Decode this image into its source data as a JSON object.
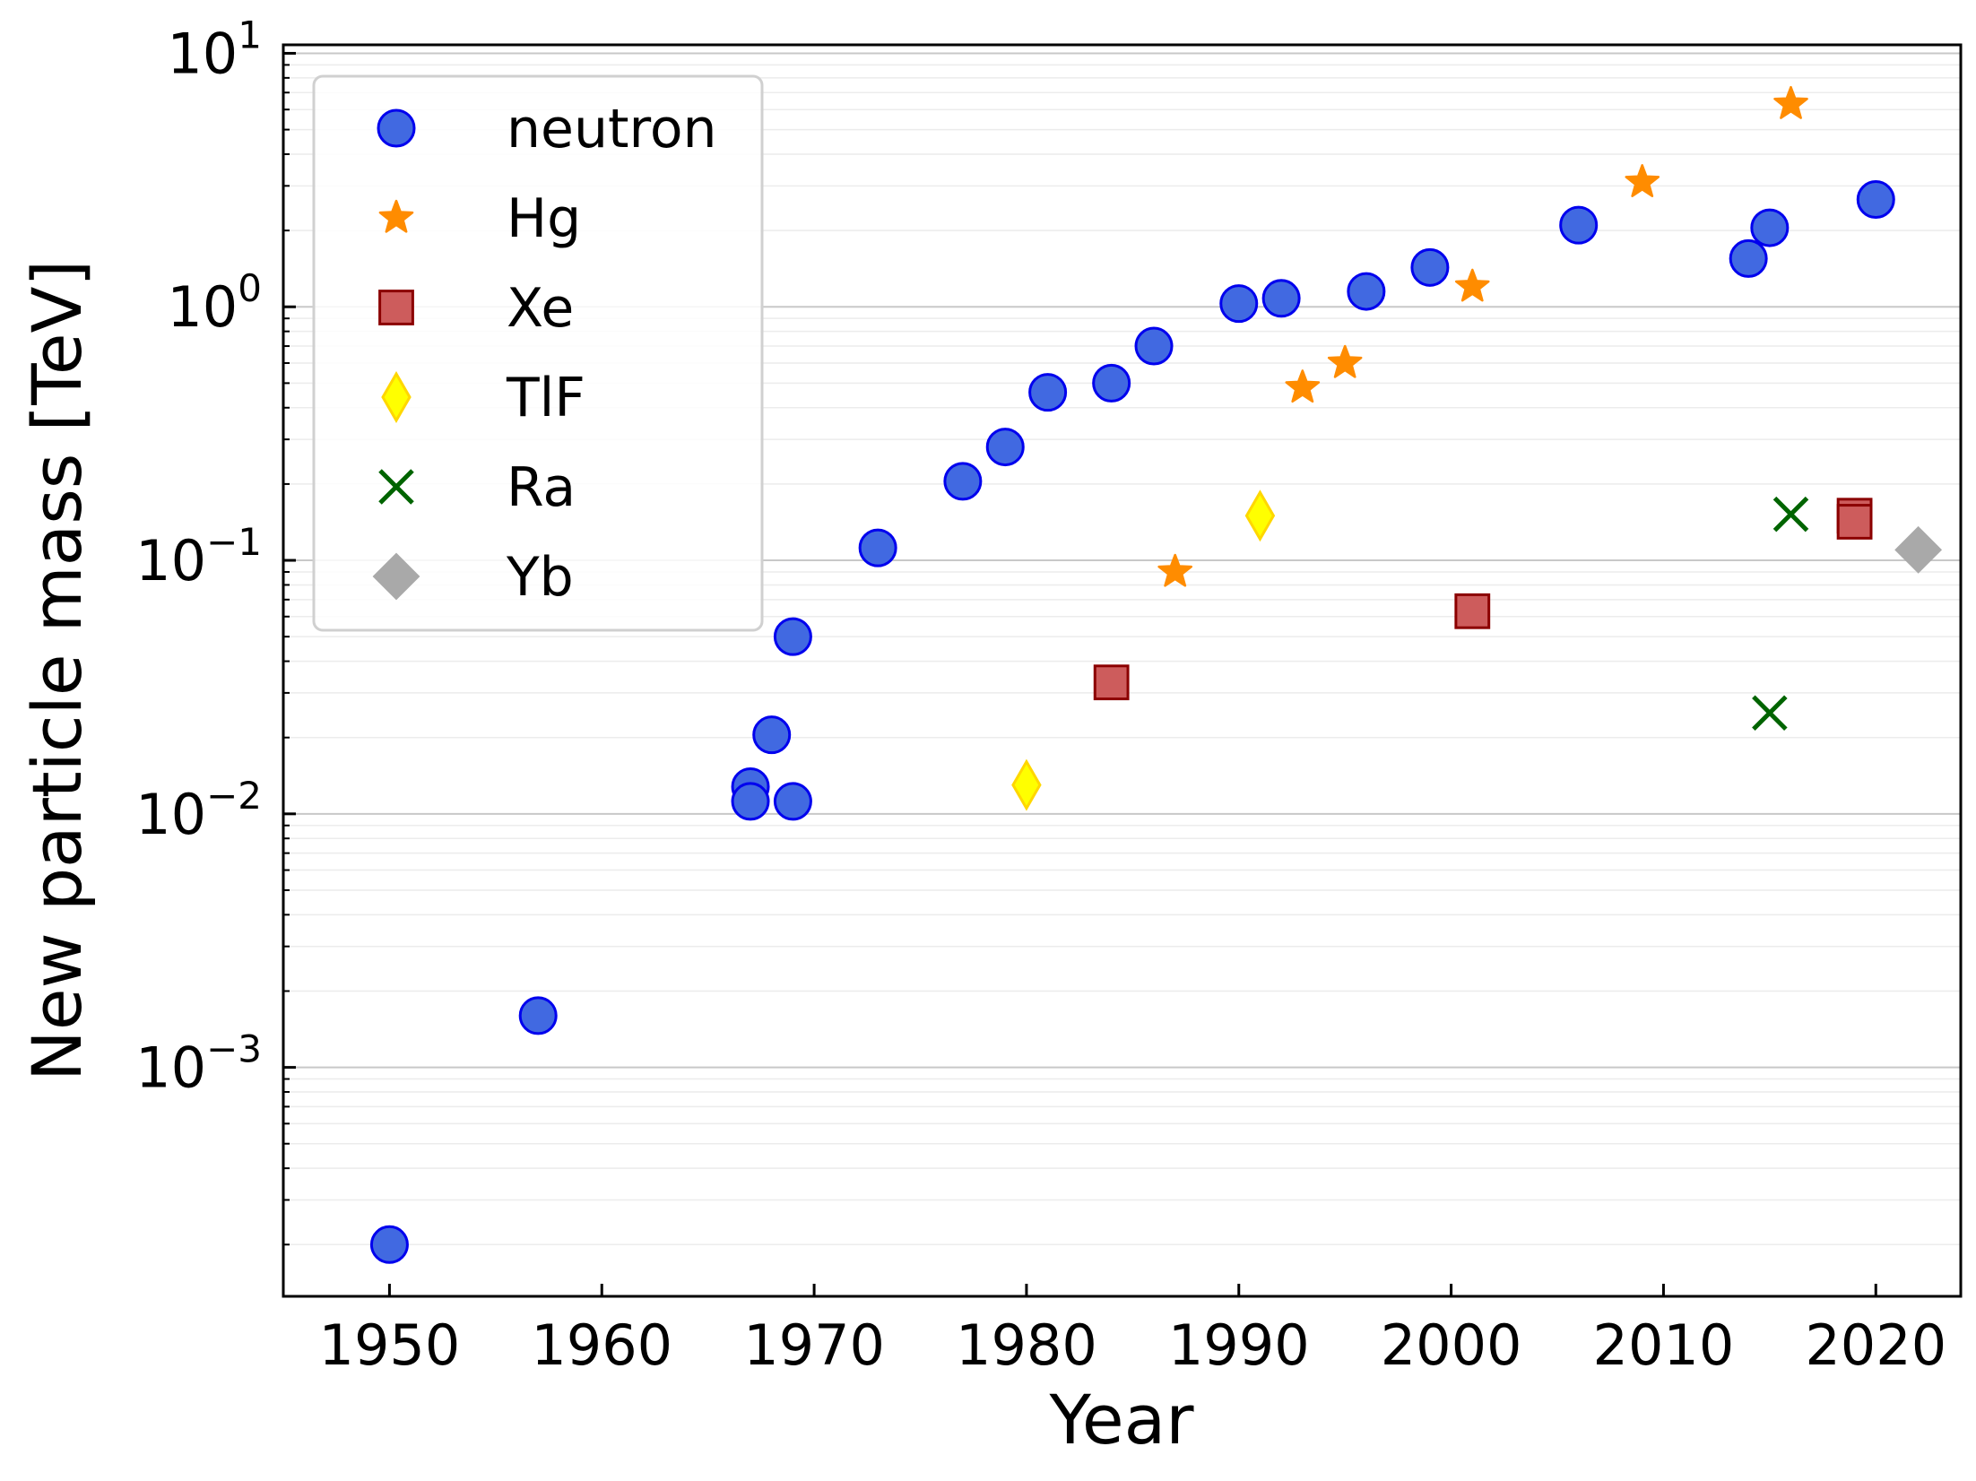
{
  "chart_data": {
    "type": "scatter",
    "xlabel": "Year",
    "ylabel": "New particle mass [TeV]",
    "xlim": [
      1945,
      2024
    ],
    "ylim": [
      0.000125,
      10.8
    ],
    "yscale": "log",
    "x_ticks": [
      1950,
      1960,
      1970,
      1980,
      1990,
      2000,
      2010,
      2020
    ],
    "y_ticks": [
      {
        "value": 0.001,
        "base": "10",
        "exp": "−3"
      },
      {
        "value": 0.01,
        "base": "10",
        "exp": "−2"
      },
      {
        "value": 0.1,
        "base": "10",
        "exp": "−1"
      },
      {
        "value": 1,
        "base": "10",
        "exp": "0"
      },
      {
        "value": 10,
        "base": "10",
        "exp": "1"
      }
    ],
    "grid": true,
    "legend_position": "top-left",
    "series": [
      {
        "name": "neutron",
        "marker": "circle",
        "color": "#4169e1",
        "edge": "#0000ee",
        "points": [
          [
            1950,
            0.0002
          ],
          [
            1957,
            0.0016
          ],
          [
            1967,
            0.0128
          ],
          [
            1967,
            0.0112
          ],
          [
            1968,
            0.0205
          ],
          [
            1969,
            0.0112
          ],
          [
            1969,
            0.05
          ],
          [
            1973,
            0.112
          ],
          [
            1977,
            0.205
          ],
          [
            1979,
            0.28
          ],
          [
            1981,
            0.46
          ],
          [
            1984,
            0.5
          ],
          [
            1986,
            0.7
          ],
          [
            1990,
            1.03
          ],
          [
            1992,
            1.08
          ],
          [
            1996,
            1.15
          ],
          [
            1999,
            1.43
          ],
          [
            2006,
            2.1
          ],
          [
            2014,
            1.55
          ],
          [
            2015,
            2.05
          ],
          [
            2020,
            2.65
          ]
        ]
      },
      {
        "name": "Hg",
        "marker": "star",
        "color": "#ff8c00",
        "edge": "#ff8c00",
        "points": [
          [
            1987,
            0.09
          ],
          [
            1993,
            0.48
          ],
          [
            1995,
            0.6
          ],
          [
            2001,
            1.2
          ],
          [
            2009,
            3.1
          ],
          [
            2016,
            6.3
          ]
        ]
      },
      {
        "name": "Xe",
        "marker": "square",
        "color": "#cd5c5c",
        "edge": "#8b0000",
        "points": [
          [
            1984,
            0.033
          ],
          [
            2001,
            0.063
          ],
          [
            2019,
            0.15
          ],
          [
            2019,
            0.142
          ]
        ]
      },
      {
        "name": "TlF",
        "marker": "thin_diamond",
        "color": "#ffff00",
        "edge": "#ffd700",
        "points": [
          [
            1980,
            0.013
          ],
          [
            1991,
            0.15
          ]
        ]
      },
      {
        "name": "Ra",
        "marker": "x",
        "color": "#006400",
        "edge": "#006400",
        "points": [
          [
            2015,
            0.025
          ],
          [
            2016,
            0.152
          ]
        ]
      },
      {
        "name": "Yb",
        "marker": "diamond",
        "color": "#a9a9a9",
        "edge": "#a9a9a9",
        "points": [
          [
            2022,
            0.11
          ]
        ]
      }
    ]
  }
}
